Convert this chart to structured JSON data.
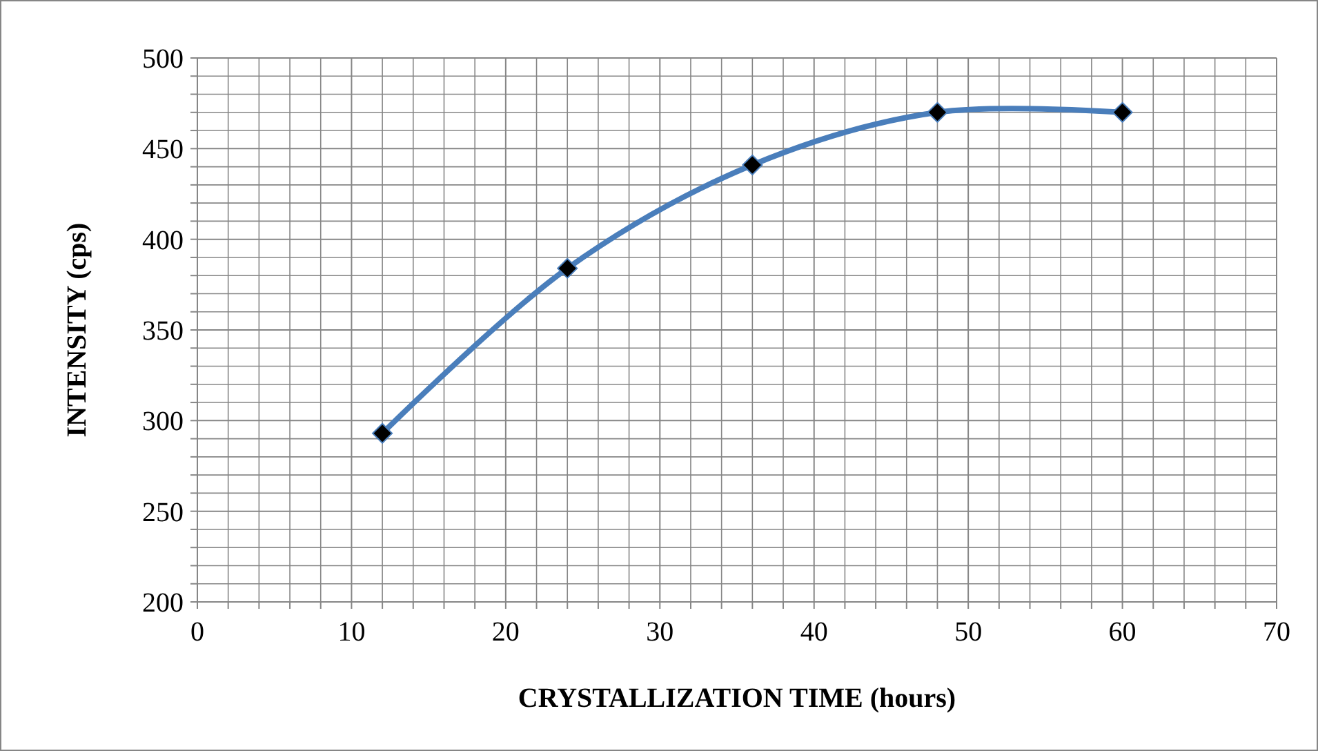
{
  "chart_data": {
    "type": "line",
    "xlabel": "CRYSTALLIZATION TIME (hours)",
    "ylabel": "INTENSITY (cps)",
    "x": [
      12,
      24,
      36,
      48,
      60
    ],
    "series": [
      {
        "color": "#4a7ebb",
        "values": [
          293,
          384,
          441,
          470,
          470
        ]
      }
    ],
    "xlim": [
      0,
      70
    ],
    "ylim": [
      200,
      500
    ],
    "xticks": [
      0,
      {
        "value": 2,
        "label": null
      },
      {
        "value": 4,
        "label": null
      },
      {
        "value": 6,
        "label": null
      },
      {
        "value": 8,
        "label": null
      },
      10,
      {
        "value": 12,
        "label": null
      },
      {
        "value": 14,
        "label": null
      },
      {
        "value": 16,
        "label": null
      },
      {
        "value": 18,
        "label": null
      },
      20,
      {
        "value": 22,
        "label": null
      },
      {
        "value": 24,
        "label": null
      },
      {
        "value": 26,
        "label": null
      },
      {
        "value": 28,
        "label": null
      },
      30,
      {
        "value": 32,
        "label": null
      },
      {
        "value": 34,
        "label": null
      },
      {
        "value": 36,
        "label": null
      },
      {
        "value": 38,
        "label": null
      },
      40,
      {
        "value": 42,
        "label": null
      },
      {
        "value": 44,
        "label": null
      },
      {
        "value": 46,
        "label": null
      },
      {
        "value": 48,
        "label": null
      },
      50,
      {
        "value": 52,
        "label": null
      },
      {
        "value": 54,
        "label": null
      },
      {
        "value": 56,
        "label": null
      },
      {
        "value": 58,
        "label": null
      },
      60,
      {
        "value": 62,
        "label": null
      },
      {
        "value": 64,
        "label": null
      },
      {
        "value": 66,
        "label": null
      },
      {
        "value": 68,
        "label": null
      },
      70
    ],
    "yticks": [
      200,
      {
        "value": 210,
        "label": null
      },
      {
        "value": 220,
        "label": null
      },
      {
        "value": 230,
        "label": null
      },
      {
        "value": 240,
        "label": null
      },
      250,
      {
        "value": 260,
        "label": null
      },
      {
        "value": 270,
        "label": null
      },
      {
        "value": 280,
        "label": null
      },
      {
        "value": 290,
        "label": null
      },
      300,
      {
        "value": 310,
        "label": null
      },
      {
        "value": 320,
        "label": null
      },
      {
        "value": 330,
        "label": null
      },
      {
        "value": 340,
        "label": null
      },
      350,
      {
        "value": 360,
        "label": null
      },
      {
        "value": 370,
        "label": null
      },
      {
        "value": 380,
        "label": null
      },
      {
        "value": 390,
        "label": null
      },
      400,
      {
        "value": 410,
        "label": null
      },
      {
        "value": 420,
        "label": null
      },
      {
        "value": 430,
        "label": null
      },
      {
        "value": 440,
        "label": null
      },
      450,
      {
        "value": 460,
        "label": null
      },
      {
        "value": 470,
        "label": null
      },
      {
        "value": 480,
        "label": null
      },
      {
        "value": 490,
        "label": null
      },
      500
    ],
    "grid": true,
    "marker": "diamond",
    "line_style": "solid"
  }
}
